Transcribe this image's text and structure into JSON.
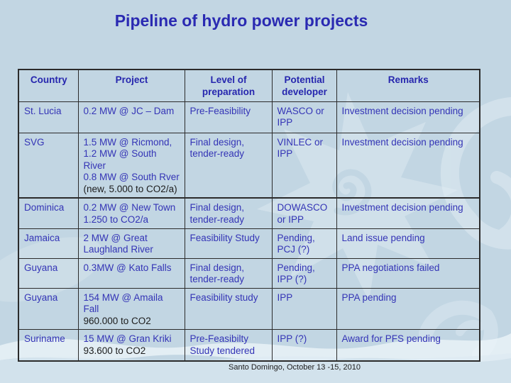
{
  "title": "Pipeline of hydro power projects",
  "footer": "Santo Domingo, October 13 -15, 2010",
  "colors": {
    "background": "#c2d6e3",
    "title_text": "#2a2ab2",
    "table_text": "#3434b6",
    "black_text": "#1c1c1c",
    "border": "#2b2b2b"
  },
  "table": {
    "headers": [
      "Country",
      "Project",
      "Level of preparation",
      "Potential developer",
      "Remarks"
    ],
    "rows": [
      {
        "country": "St. Lucia",
        "project": [
          {
            "text": "0.2 MW @ JC – Dam",
            "color": "blue"
          }
        ],
        "preparation": "Pre-Feasibility",
        "developer": "WASCO or IPP",
        "remarks": "Investment decision pending"
      },
      {
        "country": "SVG",
        "project": [
          {
            "text": "1.5 MW @ Ricmond,",
            "color": "blue"
          },
          {
            "text": "1.2 MW @ South River",
            "color": "blue"
          },
          {
            "text": "0.8 MW @ South Rver",
            "color": "blue"
          },
          {
            "text": "(new, 5.000 to CO2/a)",
            "color": "black"
          }
        ],
        "preparation": "Final design, tender-ready",
        "developer": "VINLEC or IPP",
        "remarks": "Investment decision pending"
      },
      {
        "country": "Dominica",
        "project": [
          {
            "text": "0.2 MW @ New Town",
            "color": "blue"
          },
          {
            "text": "1.250 to CO2/a",
            "color": "blue"
          }
        ],
        "preparation": "Final design, tender-ready",
        "developer": "DOWASCO or IPP",
        "remarks": "Investment decision pending"
      },
      {
        "country": "Jamaica",
        "project": [
          {
            "text": "2 MW @ Great Laughland River",
            "color": "blue"
          }
        ],
        "preparation": "Feasibility Study",
        "developer": "Pending, PCJ (?)",
        "remarks": "Land issue pending"
      },
      {
        "country": "Guyana",
        "project": [
          {
            "text": "0.3MW @ Kato Falls",
            "color": "blue"
          }
        ],
        "preparation": "Final design, tender-ready",
        "developer": "Pending, IPP (?)",
        "remarks": "PPA negotiations failed"
      },
      {
        "country": "Guyana",
        "project": [
          {
            "text": "154 MW @ Amaila Fall",
            "color": "blue"
          },
          {
            "text": "960.000 to CO2",
            "color": "black"
          }
        ],
        "preparation": "Feasibility study",
        "developer": "IPP",
        "remarks": "PPA pending"
      },
      {
        "country": "Suriname",
        "project": [
          {
            "text": "15 MW @ Gran Kriki",
            "color": "blue"
          },
          {
            "text": "93.600 to CO2",
            "color": "black"
          }
        ],
        "preparation": "Pre-Feasibilty Study tendered",
        "developer": "IPP (?)",
        "remarks": "Award for PFS pending"
      }
    ]
  }
}
